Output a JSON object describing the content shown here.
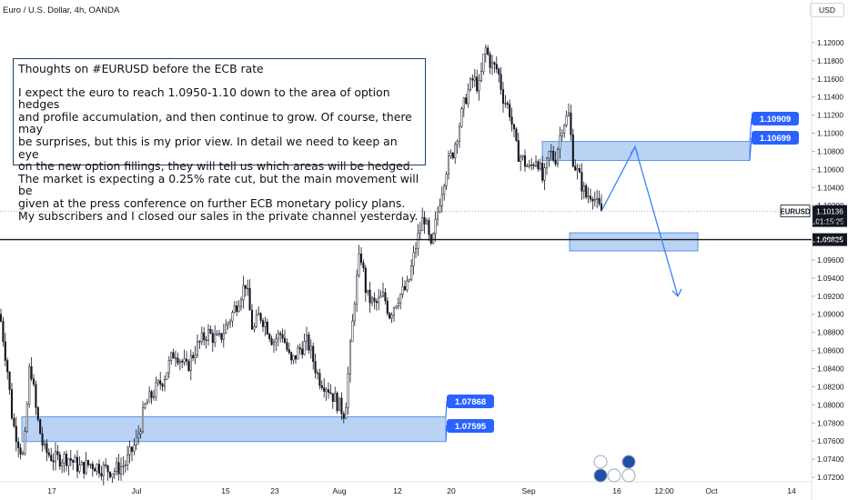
{
  "header": {
    "symbol_label": "Euro / U.S. Dollar, 4h, OANDA",
    "currency": "USD"
  },
  "note": {
    "title": "Thoughts on #EURUSD before the ECB rate",
    "body": "I expect the euro to reach 1.0950-1.10 down to the area of option hedges\nand profile accumulation, and then continue to grow. Of course, there may\nbe surprises, but this is my prior view. In detail we need to keep an eye\non the new option fillings, they will tell us which areas will be hedged.\nThe market is expecting a 0.25% rate cut, but the main movement will be\ngiven at the press conference on further ECB monetary policy plans.\nMy subscribers and I closed our sales in the private channel yesterday."
  },
  "chart_data": {
    "type": "candlestick",
    "title": "Euro / U.S. Dollar, 4h, OANDA",
    "ylim": [
      1.0718,
      1.1212
    ],
    "y_ticks": [
      "1.12000",
      "1.11800",
      "1.11600",
      "1.11400",
      "1.11200",
      "1.11000",
      "1.10800",
      "1.10600",
      "1.10400",
      "1.10200",
      "1.10000",
      "1.09800",
      "1.09600",
      "1.09400",
      "1.09200",
      "1.09000",
      "1.08800",
      "1.08600",
      "1.08400",
      "1.08200",
      "1.08000",
      "1.07800",
      "1.07600",
      "1.07400",
      "1.07200"
    ],
    "x_ticks": [
      "17",
      "Jul",
      "15",
      "23",
      "Aug",
      "12",
      "20",
      "Sep",
      "16",
      "12:00",
      "Oct",
      "14"
    ],
    "price_path": [
      [
        0,
        1.09
      ],
      [
        8,
        1.084
      ],
      [
        14,
        1.078
      ],
      [
        20,
        1.076
      ],
      [
        26,
        1.074
      ],
      [
        33,
        1.085
      ],
      [
        40,
        1.079
      ],
      [
        48,
        1.075
      ],
      [
        60,
        1.074
      ],
      [
        75,
        1.0742
      ],
      [
        88,
        1.073
      ],
      [
        100,
        1.0735
      ],
      [
        112,
        1.073
      ],
      [
        125,
        1.0727
      ],
      [
        138,
        1.0735
      ],
      [
        150,
        1.076
      ],
      [
        160,
        1.08
      ],
      [
        170,
        1.0815
      ],
      [
        180,
        1.083
      ],
      [
        192,
        1.086
      ],
      [
        205,
        1.084
      ],
      [
        215,
        1.0862
      ],
      [
        228,
        1.088
      ],
      [
        240,
        1.087
      ],
      [
        255,
        1.09
      ],
      [
        270,
        1.0935
      ],
      [
        278,
        1.088
      ],
      [
        285,
        1.09
      ],
      [
        292,
        1.089
      ],
      [
        300,
        1.087
      ],
      [
        310,
        1.088
      ],
      [
        320,
        1.0845
      ],
      [
        328,
        1.086
      ],
      [
        338,
        1.087
      ],
      [
        350,
        1.083
      ],
      [
        360,
        1.082
      ],
      [
        372,
        1.08
      ],
      [
        379,
        1.079
      ],
      [
        384,
        1.085
      ],
      [
        390,
        1.092
      ],
      [
        396,
        1.097
      ],
      [
        403,
        1.092
      ],
      [
        412,
        1.091
      ],
      [
        422,
        1.092
      ],
      [
        428,
        1.09
      ],
      [
        438,
        1.092
      ],
      [
        448,
        1.093
      ],
      [
        458,
        1.098
      ],
      [
        466,
        1.101
      ],
      [
        474,
        1.097
      ],
      [
        482,
        1.102
      ],
      [
        490,
        1.106
      ],
      [
        498,
        1.108
      ],
      [
        505,
        1.111
      ],
      [
        512,
        1.114
      ],
      [
        520,
        1.116
      ],
      [
        527,
        1.115
      ],
      [
        533,
        1.1195
      ],
      [
        540,
        1.1175
      ],
      [
        547,
        1.117
      ],
      [
        553,
        1.114
      ],
      [
        560,
        1.1125
      ],
      [
        568,
        1.108
      ],
      [
        575,
        1.107
      ],
      [
        582,
        1.106
      ],
      [
        590,
        1.1075
      ],
      [
        597,
        1.1045
      ],
      [
        604,
        1.108
      ],
      [
        610,
        1.107
      ],
      [
        618,
        1.111
      ],
      [
        625,
        1.112
      ],
      [
        630,
        1.107
      ],
      [
        637,
        1.105
      ],
      [
        644,
        1.103
      ],
      [
        651,
        1.1035
      ],
      [
        657,
        1.1018
      ],
      [
        661,
        1.1014
      ]
    ],
    "series": [
      {
        "name": "EURUSD",
        "last_value": "1.10136",
        "countdown": "01:15:25"
      }
    ],
    "annotations": {
      "horizontal_line": {
        "value": 1.09825,
        "label": "1.09825"
      },
      "upper_zone": {
        "top": 1.10909,
        "bottom": 1.10699,
        "labels": [
          "1.10909",
          "1.10699"
        ]
      },
      "lower_zone": {
        "top": 1.07868,
        "bottom": 1.07595,
        "labels": [
          "1.07868",
          "1.07595"
        ]
      },
      "target_zone": {
        "top": 1.099,
        "bottom": 1.097
      },
      "projection_path": [
        [
          661,
          1.1014
        ],
        [
          698,
          1.1085
        ],
        [
          745,
          1.092
        ]
      ]
    },
    "grid": false
  },
  "colors": {
    "up": "#089981",
    "down": "#131722",
    "candle": "#131722",
    "zone_fill": "#b3cef3",
    "zone_border": "#5b95e8",
    "label_blue": "#2962ff",
    "arrow": "#3b82f6",
    "axis_text": "#131722",
    "price_label_bg": "#131722"
  }
}
